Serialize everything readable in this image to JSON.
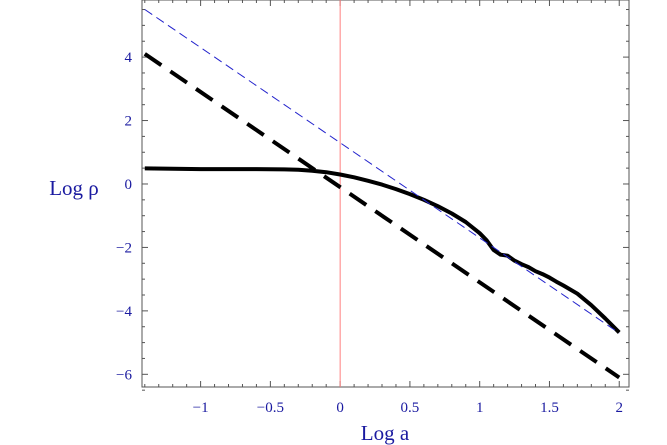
{
  "chart_data": {
    "type": "line",
    "xlabel": "Log a",
    "ylabel": "Log ρ",
    "xlim": [
      -1.42,
      2.07
    ],
    "ylim": [
      -6.4,
      5.8
    ],
    "x_ticks": [
      -1,
      -0.5,
      0,
      0.5,
      1,
      1.5,
      2
    ],
    "x_tick_labels": [
      "−1",
      "−0.5",
      "0",
      "0.5",
      "1",
      "1.5",
      "2"
    ],
    "y_ticks": [
      -6,
      -4,
      -2,
      0,
      2,
      4
    ],
    "y_tick_labels": [
      "−6",
      "−4",
      "−2",
      "0",
      "2",
      "4"
    ],
    "grid": false,
    "vertical_line_x": 0,
    "series": [
      {
        "style": "solid-thick",
        "color": "#000000",
        "x": [
          -1.4,
          -1.2,
          -1.0,
          -0.8,
          -0.6,
          -0.4,
          -0.3,
          -0.2,
          -0.1,
          0.0,
          0.1,
          0.2,
          0.3,
          0.4,
          0.5,
          0.6,
          0.7,
          0.8,
          0.9,
          1.0,
          1.05,
          1.1,
          1.15,
          1.2,
          1.25,
          1.3,
          1.35,
          1.4,
          1.45,
          1.5,
          1.55,
          1.6,
          1.7,
          1.8,
          1.9,
          2.0
        ],
        "y": [
          0.49,
          0.48,
          0.47,
          0.47,
          0.47,
          0.46,
          0.45,
          0.42,
          0.37,
          0.3,
          0.21,
          0.1,
          -0.02,
          -0.16,
          -0.32,
          -0.5,
          -0.7,
          -0.93,
          -1.2,
          -1.55,
          -1.78,
          -2.08,
          -2.23,
          -2.26,
          -2.42,
          -2.53,
          -2.62,
          -2.75,
          -2.84,
          -2.95,
          -3.08,
          -3.2,
          -3.46,
          -3.82,
          -4.24,
          -4.68
        ]
      },
      {
        "style": "dashed-thick",
        "color": "#000000",
        "x": [
          -1.4,
          2.0
        ],
        "y": [
          4.1,
          -6.1
        ]
      },
      {
        "style": "dashed-thin",
        "color": "#2222cc",
        "x": [
          -1.4,
          2.0
        ],
        "y": [
          5.5,
          -4.7
        ]
      }
    ]
  }
}
